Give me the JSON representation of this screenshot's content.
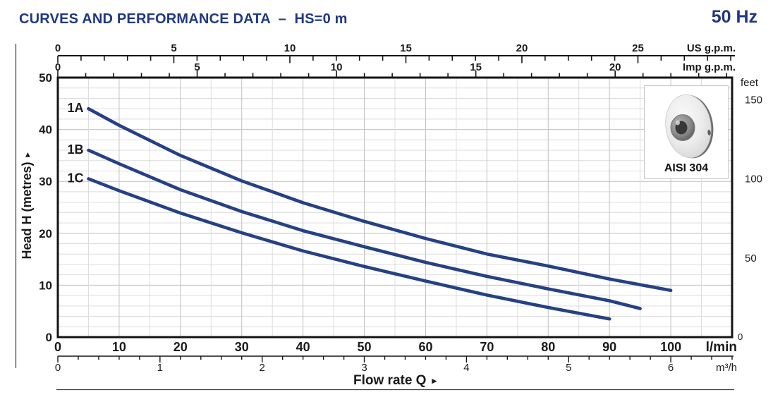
{
  "header": {
    "title": "CURVES AND PERFORMANCE DATA  –  HS=0 m",
    "frequency": "50 Hz"
  },
  "inset": {
    "label": "AISI 304"
  },
  "colors": {
    "navy": "#21387f",
    "curve": "#264183",
    "grid_minor": "#dcdcdc",
    "grid_major": "#c0c0c0",
    "axis_black": "#141414",
    "text_black": "#1a1a1a"
  },
  "chart_data": {
    "type": "line",
    "xlabel": "Flow rate Q",
    "ylabel": "Head H (metres)",
    "x_range_lmin": [
      0,
      110
    ],
    "y_range_m": [
      0,
      50
    ],
    "grid": true,
    "axes": {
      "top_outer": {
        "unit": "US g.p.m.",
        "lmin_per_unit": 3.78541,
        "minor_step": 1,
        "major_step": 5,
        "labels": [
          0,
          5,
          10,
          15,
          20,
          25
        ]
      },
      "top_inner": {
        "unit": "Imp g.p.m.",
        "lmin_per_unit": 4.54609,
        "minor_step": 1,
        "major_step": 5,
        "labels": [
          0,
          5,
          10,
          15,
          20
        ]
      },
      "bottom_primary": {
        "unit": "l/min",
        "grid_minor_step": 5,
        "grid_major_step": 10,
        "labels": [
          0,
          10,
          20,
          30,
          40,
          50,
          60,
          70,
          80,
          90,
          100
        ]
      },
      "bottom_secondary": {
        "unit": "m³/h",
        "lmin_per_unit": 16.6667,
        "minor_step": 0.2,
        "labels": [
          0,
          1,
          2,
          3,
          4,
          5,
          6
        ]
      },
      "left": {
        "grid_minor_step": 2,
        "grid_major_step": 10,
        "labels": [
          0,
          10,
          20,
          30,
          40,
          50
        ]
      },
      "right": {
        "unit": "feet",
        "m_per_unit": 0.3048,
        "minor_step": 10,
        "major_step": 50,
        "labels": [
          50,
          100,
          150
        ],
        "zero_label": "0"
      }
    },
    "series": [
      {
        "name": "1A",
        "points": [
          [
            5,
            44
          ],
          [
            10,
            40.8
          ],
          [
            20,
            35.0
          ],
          [
            30,
            30.1
          ],
          [
            40,
            25.9
          ],
          [
            50,
            22.3
          ],
          [
            60,
            19.0
          ],
          [
            70,
            16.0
          ],
          [
            80,
            13.7
          ],
          [
            90,
            11.2
          ],
          [
            100,
            9.0
          ]
        ]
      },
      {
        "name": "1B",
        "points": [
          [
            5,
            36
          ],
          [
            10,
            33.4
          ],
          [
            20,
            28.4
          ],
          [
            30,
            24.2
          ],
          [
            40,
            20.5
          ],
          [
            50,
            17.4
          ],
          [
            60,
            14.4
          ],
          [
            70,
            11.7
          ],
          [
            80,
            9.3
          ],
          [
            90,
            7.0
          ],
          [
            95,
            5.5
          ]
        ]
      },
      {
        "name": "1C",
        "points": [
          [
            5,
            30.5
          ],
          [
            10,
            28.2
          ],
          [
            20,
            23.9
          ],
          [
            30,
            20.1
          ],
          [
            40,
            16.6
          ],
          [
            50,
            13.6
          ],
          [
            60,
            10.8
          ],
          [
            70,
            8.1
          ],
          [
            80,
            5.7
          ],
          [
            90,
            3.5
          ]
        ]
      }
    ]
  }
}
